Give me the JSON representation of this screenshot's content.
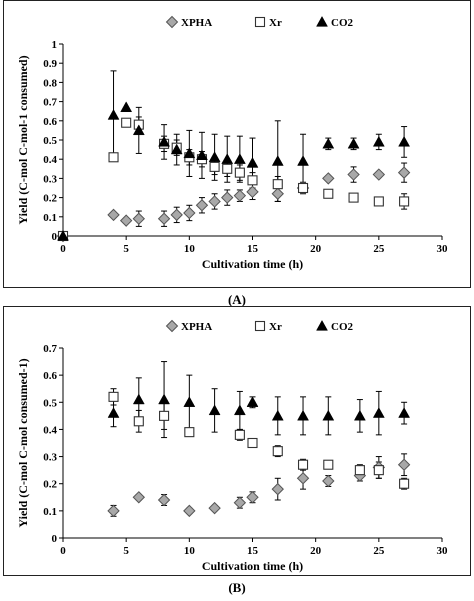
{
  "colors": {
    "xpha": "#a8a8a8",
    "xr": "#ffffff",
    "co2": "#000000",
    "axis": "#000000",
    "errbar": "#000000"
  },
  "chart_data": [
    {
      "id": "A",
      "type": "scatter",
      "caption": "(A)",
      "xlabel": "Cultivation time (h)",
      "ylabel": "Yield (C-mol C-mol-1 consumed)",
      "xlim": [
        0,
        30
      ],
      "ylim": [
        0,
        1
      ],
      "xticks": [
        "0",
        "5",
        "10",
        "15",
        "20",
        "25",
        "30"
      ],
      "yticks": [
        "0",
        "0.1",
        "0.2",
        "0.3",
        "0.4",
        "0.5",
        "0.6",
        "0.7",
        "0.8",
        "0.9",
        "1"
      ],
      "legend_position": "top",
      "series": [
        {
          "name": "XPHA",
          "marker": "diamond",
          "x": [
            0,
            4,
            5,
            6,
            8,
            9,
            10,
            11,
            12,
            13,
            14,
            15,
            17,
            19,
            21,
            23,
            25,
            27
          ],
          "y": [
            0,
            0.11,
            0.08,
            0.09,
            0.09,
            0.11,
            0.12,
            0.16,
            0.18,
            0.2,
            0.21,
            0.23,
            0.22,
            0.25,
            0.3,
            0.32,
            0.32,
            0.33
          ],
          "err": [
            0.01,
            0.01,
            0.01,
            0.04,
            0.04,
            0.04,
            0.04,
            0.04,
            0.04,
            0.04,
            0.03,
            0.04,
            0.04,
            0.03,
            0.01,
            0.04,
            0.01,
            0.05
          ]
        },
        {
          "name": "Xr",
          "marker": "square",
          "x": [
            0,
            4,
            5,
            6,
            8,
            9,
            10,
            11,
            12,
            13,
            14,
            15,
            17,
            19,
            21,
            23,
            25,
            27
          ],
          "y": [
            0,
            0.41,
            0.59,
            0.58,
            0.48,
            0.46,
            0.41,
            0.4,
            0.36,
            0.35,
            0.33,
            0.29,
            0.27,
            0.25,
            0.22,
            0.2,
            0.18,
            0.18
          ],
          "err": [
            0.01,
            0.02,
            0.02,
            0.04,
            0.04,
            0.04,
            0.04,
            0.04,
            0.04,
            0.04,
            0.04,
            0.04,
            0.04,
            0.02,
            0.02,
            0.02,
            0.02,
            0.04
          ]
        },
        {
          "name": "CO2",
          "marker": "triangle",
          "x": [
            0,
            4,
            5,
            6,
            8,
            9,
            10,
            11,
            12,
            13,
            14,
            15,
            17,
            19,
            21,
            23,
            25,
            27
          ],
          "y": [
            0,
            0.63,
            0.67,
            0.55,
            0.49,
            0.45,
            0.43,
            0.42,
            0.41,
            0.4,
            0.4,
            0.38,
            0.39,
            0.39,
            0.48,
            0.48,
            0.49,
            0.49
          ],
          "err": [
            0,
            0.23,
            0,
            0.12,
            0.09,
            0.08,
            0.12,
            0.12,
            0.12,
            0.12,
            0.12,
            0.13,
            0.21,
            0.14,
            0.03,
            0.03,
            0.04,
            0.08
          ]
        }
      ]
    },
    {
      "id": "B",
      "type": "scatter",
      "caption": "(B)",
      "xlabel": "Cultivation time (h)",
      "ylabel": "Yield (C-mol C-mol consumed-1)",
      "xlim": [
        0,
        30
      ],
      "ylim": [
        0,
        0.7
      ],
      "xticks": [
        "0",
        "5",
        "10",
        "15",
        "20",
        "25",
        "30"
      ],
      "yticks": [
        "0",
        "0.1",
        "0.2",
        "0.3",
        "0.4",
        "0.5",
        "0.6",
        "0.7"
      ],
      "legend_position": "top",
      "series": [
        {
          "name": "XPHA",
          "marker": "diamond",
          "x": [
            4,
            6,
            8,
            10,
            12,
            14,
            15,
            17,
            19,
            21,
            23.5,
            25,
            27
          ],
          "y": [
            0.1,
            0.15,
            0.14,
            0.1,
            0.11,
            0.13,
            0.15,
            0.18,
            0.22,
            0.21,
            0.23,
            0.26,
            0.27
          ],
          "err": [
            0.02,
            0.01,
            0.02,
            0.01,
            0.01,
            0.02,
            0.02,
            0.04,
            0.04,
            0.02,
            0.02,
            0.04,
            0.04
          ]
        },
        {
          "name": "Xr",
          "marker": "square",
          "x": [
            4,
            6,
            8,
            10,
            14,
            15,
            17,
            19,
            21,
            23.5,
            25,
            27
          ],
          "y": [
            0.52,
            0.43,
            0.45,
            0.39,
            0.38,
            0.35,
            0.32,
            0.27,
            0.27,
            0.25,
            0.25,
            0.2
          ],
          "err": [
            0.03,
            0.04,
            0.05,
            0.01,
            0.02,
            0.01,
            0.02,
            0.02,
            0.01,
            0.02,
            0.03,
            0.02
          ]
        },
        {
          "name": "CO2",
          "marker": "triangle",
          "x": [
            4,
            6,
            8,
            10,
            12,
            14,
            15,
            17,
            19,
            21,
            23.5,
            25,
            27
          ],
          "y": [
            0.46,
            0.51,
            0.51,
            0.5,
            0.47,
            0.47,
            0.5,
            0.45,
            0.45,
            0.45,
            0.45,
            0.46,
            0.46
          ],
          "err": [
            0.05,
            0.08,
            0.14,
            0.1,
            0.08,
            0.07,
            0.02,
            0.07,
            0.07,
            0.07,
            0.06,
            0.08,
            0.04
          ]
        }
      ]
    }
  ]
}
